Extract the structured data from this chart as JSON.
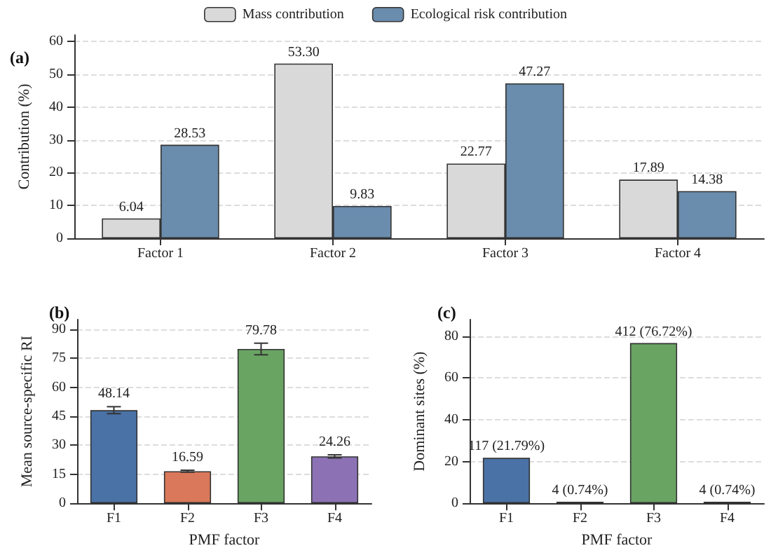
{
  "chart_data": [
    {
      "type": "bar",
      "title": "(a)",
      "categories": [
        "Factor 1",
        "Factor 2",
        "Factor 3",
        "Factor 4"
      ],
      "ylabel": "Contribution (%)",
      "ylim": [
        0,
        62
      ],
      "yticks": [
        0,
        10,
        20,
        30,
        40,
        50,
        60
      ],
      "grid": "y",
      "legend": "top",
      "series": [
        {
          "name": "Mass contribution",
          "color": "#d9d9d9",
          "values": [
            6.04,
            53.3,
            22.77,
            17.89
          ],
          "value_labels": [
            "6.04",
            "53.30",
            "22.77",
            "17.89"
          ]
        },
        {
          "name": "Ecological risk contribution",
          "color": "#6a8cad",
          "values": [
            28.53,
            9.83,
            47.27,
            14.38
          ],
          "value_labels": [
            "28.53",
            "9.83",
            "47.27",
            "14.38"
          ]
        }
      ]
    },
    {
      "type": "bar",
      "title": "(b)",
      "categories": [
        "F1",
        "F2",
        "F3",
        "F4"
      ],
      "xlabel": "PMF factor",
      "ylabel": "Mean source-specific RI",
      "values": [
        48.14,
        16.59,
        79.78,
        24.26
      ],
      "colors": [
        "#4a72a6",
        "#d9785a",
        "#6aa463",
        "#8c72b5"
      ],
      "errors": [
        1.8,
        0.5,
        3.0,
        0.8
      ],
      "data_labels": true,
      "ylim": [
        0,
        95
      ],
      "yticks": [
        0,
        15,
        30,
        45,
        60,
        75,
        90
      ],
      "grid": "y"
    },
    {
      "type": "bar",
      "title": "(c)",
      "categories": [
        "F1",
        "F2",
        "F3",
        "F4"
      ],
      "xlabel": "PMF factor",
      "ylabel": "Dominant sites (%)",
      "values": [
        21.79,
        0.74,
        76.72,
        0.74
      ],
      "colors": [
        "#4a72a6",
        "#d9785a",
        "#6aa463",
        "#8c72b5"
      ],
      "value_labels": [
        "117 (21.79%)",
        "4 (0.74%)",
        "412 (76.72%)",
        "4 (0.74%)"
      ],
      "ylim": [
        0,
        88
      ],
      "yticks": [
        0,
        20,
        40,
        60,
        80
      ],
      "grid": "y"
    }
  ]
}
